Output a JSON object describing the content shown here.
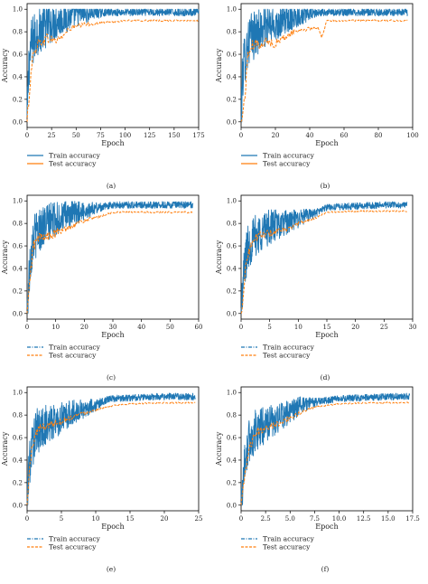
{
  "chart_data": [
    {
      "type": "line",
      "caption": "(a)",
      "xlabel": "Epoch",
      "ylabel": "Accuracy",
      "xlim": [
        0,
        175
      ],
      "ylim": [
        0,
        1
      ],
      "xticks": [
        "0",
        "25",
        "50",
        "75",
        "100",
        "125",
        "150",
        "175"
      ],
      "yticks": [
        "0.0",
        "0.2",
        "0.4",
        "0.6",
        "0.8",
        "1.0"
      ],
      "legend": {
        "placement": "below",
        "entries": [
          "Train accuracy",
          "Test accuracy"
        ]
      },
      "series": [
        {
          "name": "Train accuracy",
          "color": "#1f77b4",
          "x": [
            0,
            2,
            5,
            8,
            10,
            15,
            20,
            25,
            30,
            35,
            40,
            45,
            50,
            60,
            75,
            100,
            125,
            150,
            175
          ],
          "y": [
            0.05,
            0.6,
            0.75,
            0.8,
            0.85,
            0.88,
            0.9,
            0.92,
            0.93,
            0.95,
            0.96,
            0.97,
            0.98,
            0.98,
            0.98,
            0.98,
            0.98,
            0.98,
            0.98
          ],
          "noise": 0.22
        },
        {
          "name": "Test accuracy",
          "color": "#ff7f0e",
          "x": [
            0,
            2,
            5,
            10,
            15,
            20,
            25,
            30,
            35,
            40,
            45,
            50,
            60,
            75,
            100,
            125,
            150,
            175
          ],
          "y": [
            0.0,
            0.25,
            0.55,
            0.7,
            0.72,
            0.75,
            0.74,
            0.73,
            0.76,
            0.8,
            0.84,
            0.85,
            0.87,
            0.88,
            0.9,
            0.9,
            0.9,
            0.9
          ],
          "noise": 0.05
        }
      ]
    },
    {
      "type": "line",
      "caption": "(b)",
      "xlabel": "Epoch",
      "ylabel": "Accuracy",
      "xlim": [
        0,
        100
      ],
      "ylim": [
        0,
        1
      ],
      "xticks": [
        "0",
        "20",
        "40",
        "60",
        "80",
        "100"
      ],
      "yticks": [
        "0.0",
        "0.2",
        "0.4",
        "0.6",
        "0.8",
        "1.0"
      ],
      "legend": {
        "placement": "below",
        "entries": [
          "Train accuracy",
          "Test accuracy"
        ]
      },
      "series": [
        {
          "name": "Train accuracy",
          "color": "#1f77b4",
          "x": [
            0,
            1,
            3,
            5,
            8,
            10,
            15,
            20,
            25,
            30,
            40,
            50,
            60,
            80,
            97
          ],
          "y": [
            0.05,
            0.5,
            0.7,
            0.78,
            0.82,
            0.85,
            0.88,
            0.9,
            0.93,
            0.95,
            0.97,
            0.98,
            0.98,
            0.98,
            0.98
          ],
          "noise": 0.22
        },
        {
          "name": "Test accuracy",
          "color": "#ff7f0e",
          "x": [
            0,
            2,
            4,
            6,
            10,
            15,
            20,
            25,
            30,
            35,
            40,
            45,
            47,
            50,
            60,
            80,
            97
          ],
          "y": [
            0.0,
            0.2,
            0.6,
            0.68,
            0.7,
            0.72,
            0.7,
            0.75,
            0.8,
            0.82,
            0.83,
            0.84,
            0.75,
            0.9,
            0.9,
            0.9,
            0.9
          ],
          "noise": 0.05
        }
      ]
    },
    {
      "type": "line",
      "caption": "(c)",
      "xlabel": "Epoch",
      "ylabel": "Accuracy",
      "xlim": [
        0,
        60
      ],
      "ylim": [
        0,
        1
      ],
      "xticks": [
        "0",
        "10",
        "20",
        "30",
        "40",
        "50",
        "60"
      ],
      "yticks": [
        "0.0",
        "0.2",
        "0.4",
        "0.6",
        "0.8",
        "1.0"
      ],
      "legend": {
        "placement": "below",
        "entries": [
          "Train accuracy",
          "Test accuracy"
        ]
      },
      "series": [
        {
          "name": "Train accuracy",
          "color": "#1f77b4",
          "x": [
            0,
            1,
            2,
            4,
            6,
            8,
            10,
            15,
            20,
            25,
            30,
            40,
            50,
            58
          ],
          "y": [
            0.05,
            0.5,
            0.7,
            0.78,
            0.82,
            0.85,
            0.87,
            0.9,
            0.93,
            0.95,
            0.97,
            0.97,
            0.97,
            0.97
          ],
          "noise": 0.2
        },
        {
          "name": "Test accuracy",
          "color": "#ff7f0e",
          "x": [
            0,
            1,
            2,
            4,
            6,
            8,
            10,
            12,
            15,
            20,
            25,
            30,
            40,
            50,
            58
          ],
          "y": [
            0.0,
            0.3,
            0.6,
            0.68,
            0.7,
            0.69,
            0.72,
            0.74,
            0.78,
            0.83,
            0.86,
            0.9,
            0.9,
            0.9,
            0.9
          ],
          "noise": 0.05
        }
      ]
    },
    {
      "type": "line",
      "caption": "(d)",
      "xlabel": "Epoch",
      "ylabel": "Accuracy",
      "xlim": [
        0,
        30
      ],
      "ylim": [
        0,
        1
      ],
      "xticks": [
        "0",
        "5",
        "10",
        "15",
        "20",
        "25",
        "30"
      ],
      "yticks": [
        "0.0",
        "0.2",
        "0.4",
        "0.6",
        "0.8",
        "1.0"
      ],
      "legend": {
        "placement": "below",
        "entries": [
          "Train accuracy",
          "Test accuracy"
        ]
      },
      "series": [
        {
          "name": "Train accuracy",
          "color": "#1f77b4",
          "x": [
            0,
            0.5,
            1,
            2,
            3,
            5,
            8,
            10,
            13,
            15,
            20,
            25,
            29
          ],
          "y": [
            0.05,
            0.4,
            0.6,
            0.7,
            0.75,
            0.8,
            0.83,
            0.86,
            0.9,
            0.95,
            0.96,
            0.97,
            0.97
          ],
          "noise": 0.2
        },
        {
          "name": "Test accuracy",
          "color": "#ff7f0e",
          "x": [
            0,
            0.5,
            1,
            2,
            3,
            5,
            8,
            10,
            13,
            15,
            20,
            25,
            29
          ],
          "y": [
            0.0,
            0.25,
            0.5,
            0.65,
            0.7,
            0.72,
            0.75,
            0.8,
            0.85,
            0.9,
            0.91,
            0.91,
            0.91
          ],
          "noise": 0.04
        }
      ]
    },
    {
      "type": "line",
      "caption": "(e)",
      "xlabel": "Epoch",
      "ylabel": "Accuracy",
      "xlim": [
        0,
        25
      ],
      "ylim": [
        0,
        1
      ],
      "xticks": [
        "0",
        "5",
        "10",
        "15",
        "20",
        "25"
      ],
      "yticks": [
        "0.0",
        "0.2",
        "0.4",
        "0.6",
        "0.8",
        "1.0"
      ],
      "legend": {
        "placement": "below",
        "entries": [
          "Train accuracy",
          "Test accuracy"
        ]
      },
      "series": [
        {
          "name": "Train accuracy",
          "color": "#1f77b4",
          "x": [
            0,
            0.3,
            0.8,
            1.5,
            3,
            5,
            7,
            10,
            12,
            15,
            20,
            24.5
          ],
          "y": [
            0.05,
            0.4,
            0.6,
            0.7,
            0.75,
            0.8,
            0.85,
            0.9,
            0.95,
            0.96,
            0.97,
            0.97
          ],
          "noise": 0.2
        },
        {
          "name": "Test accuracy",
          "color": "#ff7f0e",
          "x": [
            0,
            0.3,
            0.8,
            1.5,
            3,
            5,
            7,
            10,
            12,
            15,
            20,
            24.5
          ],
          "y": [
            0.0,
            0.3,
            0.55,
            0.68,
            0.72,
            0.75,
            0.8,
            0.85,
            0.88,
            0.9,
            0.91,
            0.91
          ],
          "noise": 0.04
        }
      ]
    },
    {
      "type": "line",
      "caption": "(f)",
      "xlabel": "Epoch",
      "ylabel": "Accuracy",
      "xlim": [
        0,
        17.5
      ],
      "ylim": [
        0,
        1
      ],
      "xticks": [
        "0",
        "2.5",
        "5.0",
        "7.5",
        "10.0",
        "12.5",
        "15.0",
        "17.5"
      ],
      "yticks": [
        "0.0",
        "0.2",
        "0.4",
        "0.6",
        "0.8",
        "1.0"
      ],
      "legend": {
        "placement": "below",
        "entries": [
          "Train accuracy",
          "Test accuracy"
        ]
      },
      "series": [
        {
          "name": "Train accuracy",
          "color": "#1f77b4",
          "x": [
            0,
            0.3,
            0.8,
            1.5,
            2.5,
            3.5,
            5,
            6,
            8,
            10,
            12.5,
            15,
            17.2
          ],
          "y": [
            0.05,
            0.4,
            0.6,
            0.7,
            0.75,
            0.78,
            0.85,
            0.9,
            0.93,
            0.95,
            0.96,
            0.97,
            0.97
          ],
          "noise": 0.2
        },
        {
          "name": "Test accuracy",
          "color": "#ff7f0e",
          "x": [
            0,
            0.3,
            0.8,
            1.5,
            2.5,
            3.5,
            5,
            6,
            7,
            8,
            10,
            12.5,
            15,
            17.2
          ],
          "y": [
            0.0,
            0.2,
            0.5,
            0.65,
            0.7,
            0.72,
            0.78,
            0.82,
            0.86,
            0.88,
            0.9,
            0.91,
            0.91,
            0.91
          ],
          "noise": 0.04
        }
      ]
    }
  ]
}
